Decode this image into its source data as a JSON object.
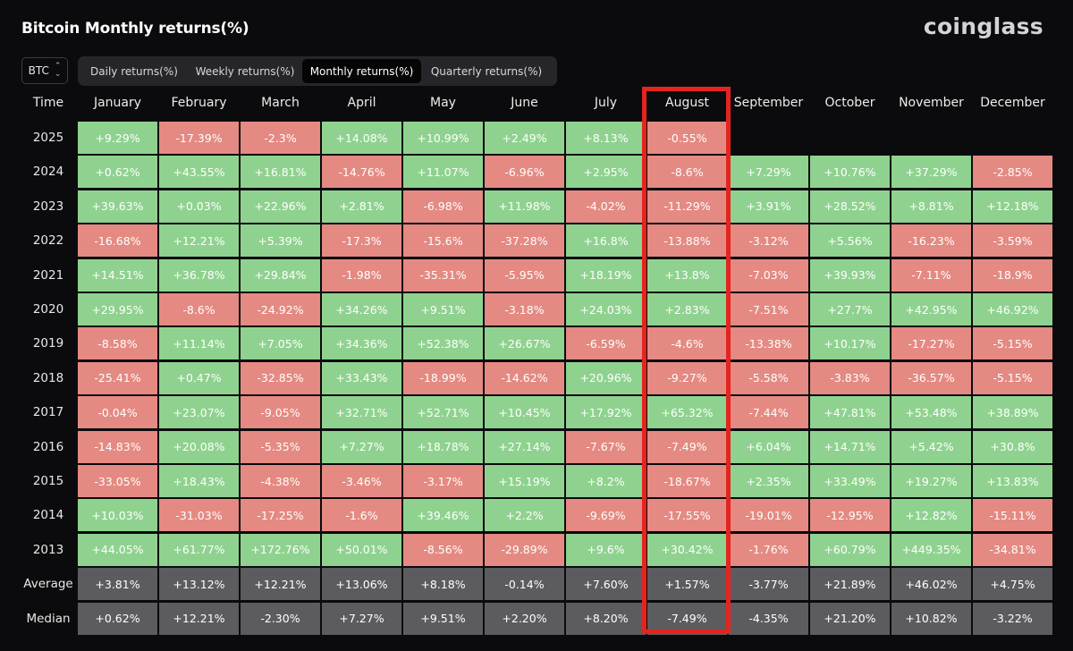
{
  "header": {
    "title": "Bitcoin Monthly returns(%)",
    "brand": "coinglass"
  },
  "coin_select": {
    "value": "BTC",
    "arrows": "⌃⌄"
  },
  "tabs": [
    {
      "label": "Daily returns(%)",
      "active": false
    },
    {
      "label": "Weekly returns(%)",
      "active": false
    },
    {
      "label": "Monthly returns(%)",
      "active": true
    },
    {
      "label": "Quarterly returns(%)",
      "active": false
    }
  ],
  "colors": {
    "positive": "#8fd28f",
    "negative": "#e48a82",
    "summary": "#5c5c60",
    "highlight": "#e3241f"
  },
  "chart_data": {
    "type": "table",
    "title": "Bitcoin Monthly returns(%)",
    "corner_label": "Time",
    "columns": [
      "January",
      "February",
      "March",
      "April",
      "May",
      "June",
      "July",
      "August",
      "September",
      "October",
      "November",
      "December"
    ],
    "highlighted_column": "August",
    "rows": [
      {
        "label": "2025",
        "values": [
          "+9.29%",
          "-17.39%",
          "-2.3%",
          "+14.08%",
          "+10.99%",
          "+2.49%",
          "+8.13%",
          "-0.55%",
          "",
          "",
          "",
          ""
        ]
      },
      {
        "label": "2024",
        "values": [
          "+0.62%",
          "+43.55%",
          "+16.81%",
          "-14.76%",
          "+11.07%",
          "-6.96%",
          "+2.95%",
          "-8.6%",
          "+7.29%",
          "+10.76%",
          "+37.29%",
          "-2.85%"
        ]
      },
      {
        "label": "2023",
        "values": [
          "+39.63%",
          "+0.03%",
          "+22.96%",
          "+2.81%",
          "-6.98%",
          "+11.98%",
          "-4.02%",
          "-11.29%",
          "+3.91%",
          "+28.52%",
          "+8.81%",
          "+12.18%"
        ]
      },
      {
        "label": "2022",
        "values": [
          "-16.68%",
          "+12.21%",
          "+5.39%",
          "-17.3%",
          "-15.6%",
          "-37.28%",
          "+16.8%",
          "-13.88%",
          "-3.12%",
          "+5.56%",
          "-16.23%",
          "-3.59%"
        ]
      },
      {
        "label": "2021",
        "values": [
          "+14.51%",
          "+36.78%",
          "+29.84%",
          "-1.98%",
          "-35.31%",
          "-5.95%",
          "+18.19%",
          "+13.8%",
          "-7.03%",
          "+39.93%",
          "-7.11%",
          "-18.9%"
        ]
      },
      {
        "label": "2020",
        "values": [
          "+29.95%",
          "-8.6%",
          "-24.92%",
          "+34.26%",
          "+9.51%",
          "-3.18%",
          "+24.03%",
          "+2.83%",
          "-7.51%",
          "+27.7%",
          "+42.95%",
          "+46.92%"
        ]
      },
      {
        "label": "2019",
        "values": [
          "-8.58%",
          "+11.14%",
          "+7.05%",
          "+34.36%",
          "+52.38%",
          "+26.67%",
          "-6.59%",
          "-4.6%",
          "-13.38%",
          "+10.17%",
          "-17.27%",
          "-5.15%"
        ]
      },
      {
        "label": "2018",
        "values": [
          "-25.41%",
          "+0.47%",
          "-32.85%",
          "+33.43%",
          "-18.99%",
          "-14.62%",
          "+20.96%",
          "-9.27%",
          "-5.58%",
          "-3.83%",
          "-36.57%",
          "-5.15%"
        ]
      },
      {
        "label": "2017",
        "values": [
          "-0.04%",
          "+23.07%",
          "-9.05%",
          "+32.71%",
          "+52.71%",
          "+10.45%",
          "+17.92%",
          "+65.32%",
          "-7.44%",
          "+47.81%",
          "+53.48%",
          "+38.89%"
        ]
      },
      {
        "label": "2016",
        "values": [
          "-14.83%",
          "+20.08%",
          "-5.35%",
          "+7.27%",
          "+18.78%",
          "+27.14%",
          "-7.67%",
          "-7.49%",
          "+6.04%",
          "+14.71%",
          "+5.42%",
          "+30.8%"
        ]
      },
      {
        "label": "2015",
        "values": [
          "-33.05%",
          "+18.43%",
          "-4.38%",
          "-3.46%",
          "-3.17%",
          "+15.19%",
          "+8.2%",
          "-18.67%",
          "+2.35%",
          "+33.49%",
          "+19.27%",
          "+13.83%"
        ]
      },
      {
        "label": "2014",
        "values": [
          "+10.03%",
          "-31.03%",
          "-17.25%",
          "-1.6%",
          "+39.46%",
          "+2.2%",
          "-9.69%",
          "-17.55%",
          "-19.01%",
          "-12.95%",
          "+12.82%",
          "-15.11%"
        ]
      },
      {
        "label": "2013",
        "values": [
          "+44.05%",
          "+61.77%",
          "+172.76%",
          "+50.01%",
          "-8.56%",
          "-29.89%",
          "+9.6%",
          "+30.42%",
          "-1.76%",
          "+60.79%",
          "+449.35%",
          "-34.81%"
        ]
      }
    ],
    "summary_rows": [
      {
        "label": "Average",
        "values": [
          "+3.81%",
          "+13.12%",
          "+12.21%",
          "+13.06%",
          "+8.18%",
          "-0.14%",
          "+7.60%",
          "+1.57%",
          "-3.77%",
          "+21.89%",
          "+46.02%",
          "+4.75%"
        ]
      },
      {
        "label": "Median",
        "values": [
          "+0.62%",
          "+12.21%",
          "-2.30%",
          "+7.27%",
          "+9.51%",
          "+2.20%",
          "+8.20%",
          "-7.49%",
          "-4.35%",
          "+21.20%",
          "+10.82%",
          "-3.22%"
        ]
      }
    ]
  }
}
